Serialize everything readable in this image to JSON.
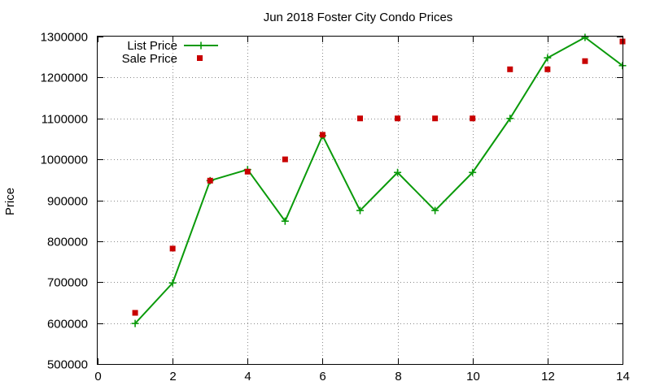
{
  "chart_data": {
    "type": "line",
    "title": "Jun 2018 Foster City Condo Prices",
    "xlabel": "",
    "ylabel": "Price",
    "xlim": [
      0,
      14
    ],
    "ylim": [
      500000,
      1300000
    ],
    "x_ticks": [
      0,
      2,
      4,
      6,
      8,
      10,
      12,
      14
    ],
    "y_ticks": [
      500000,
      600000,
      700000,
      800000,
      900000,
      1000000,
      1100000,
      1200000,
      1300000
    ],
    "grid": true,
    "legend_position": "top-left",
    "series": [
      {
        "name": "List Price",
        "style": "line-with-plus-markers",
        "color": "#0a9a0a",
        "points": [
          [
            1,
            599000
          ],
          [
            2,
            698000
          ],
          [
            3,
            948000
          ],
          [
            4,
            975000
          ],
          [
            5,
            849000
          ],
          [
            6,
            1058000
          ],
          [
            7,
            875000
          ],
          [
            8,
            968000
          ],
          [
            9,
            875000
          ],
          [
            10,
            968000
          ],
          [
            11,
            1100000
          ],
          [
            12,
            1248000
          ],
          [
            13,
            1298000
          ],
          [
            14,
            1229000
          ]
        ]
      },
      {
        "name": "Sale Price",
        "style": "square-markers",
        "color": "#c80000",
        "points": [
          [
            1,
            625000
          ],
          [
            2,
            782000
          ],
          [
            3,
            948000
          ],
          [
            4,
            970000
          ],
          [
            5,
            1000000
          ],
          [
            6,
            1060000
          ],
          [
            7,
            1100000
          ],
          [
            8,
            1100000
          ],
          [
            9,
            1100000
          ],
          [
            10,
            1100000
          ],
          [
            11,
            1220000
          ],
          [
            12,
            1220000
          ],
          [
            13,
            1240000
          ],
          [
            14,
            1288000
          ]
        ]
      }
    ]
  }
}
